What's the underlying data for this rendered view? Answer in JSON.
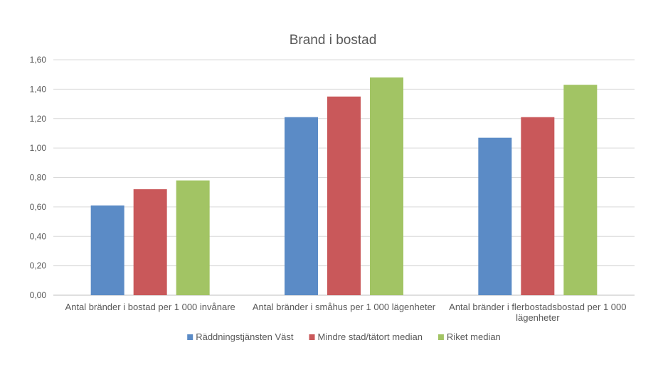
{
  "chart_data": {
    "type": "bar",
    "title": "Brand i bostad",
    "categories": [
      [
        "Antal bränder i bostad per 1 000 invånare"
      ],
      [
        "Antal bränder i småhus per 1 000 lägenheter"
      ],
      [
        "Antal bränder i flerbostadsbostad per 1 000",
        "lägenheter"
      ]
    ],
    "series": [
      {
        "name": "Räddningstjänsten Väst",
        "color": "#5b8bc6",
        "values": [
          0.61,
          1.21,
          1.07
        ]
      },
      {
        "name": "Mindre stad/tätort median",
        "color": "#c9585a",
        "values": [
          0.72,
          1.35,
          1.21
        ]
      },
      {
        "name": "Riket median",
        "color": "#a2c464",
        "values": [
          0.78,
          1.48,
          1.43
        ]
      }
    ],
    "ylim": [
      0,
      1.6
    ],
    "yticks": [
      "0,00",
      "0,20",
      "0,40",
      "0,60",
      "0,80",
      "1,00",
      "1,20",
      "1,40",
      "1,60"
    ],
    "xlabel": "",
    "ylabel": "",
    "grid": true,
    "legend": "bottom"
  }
}
